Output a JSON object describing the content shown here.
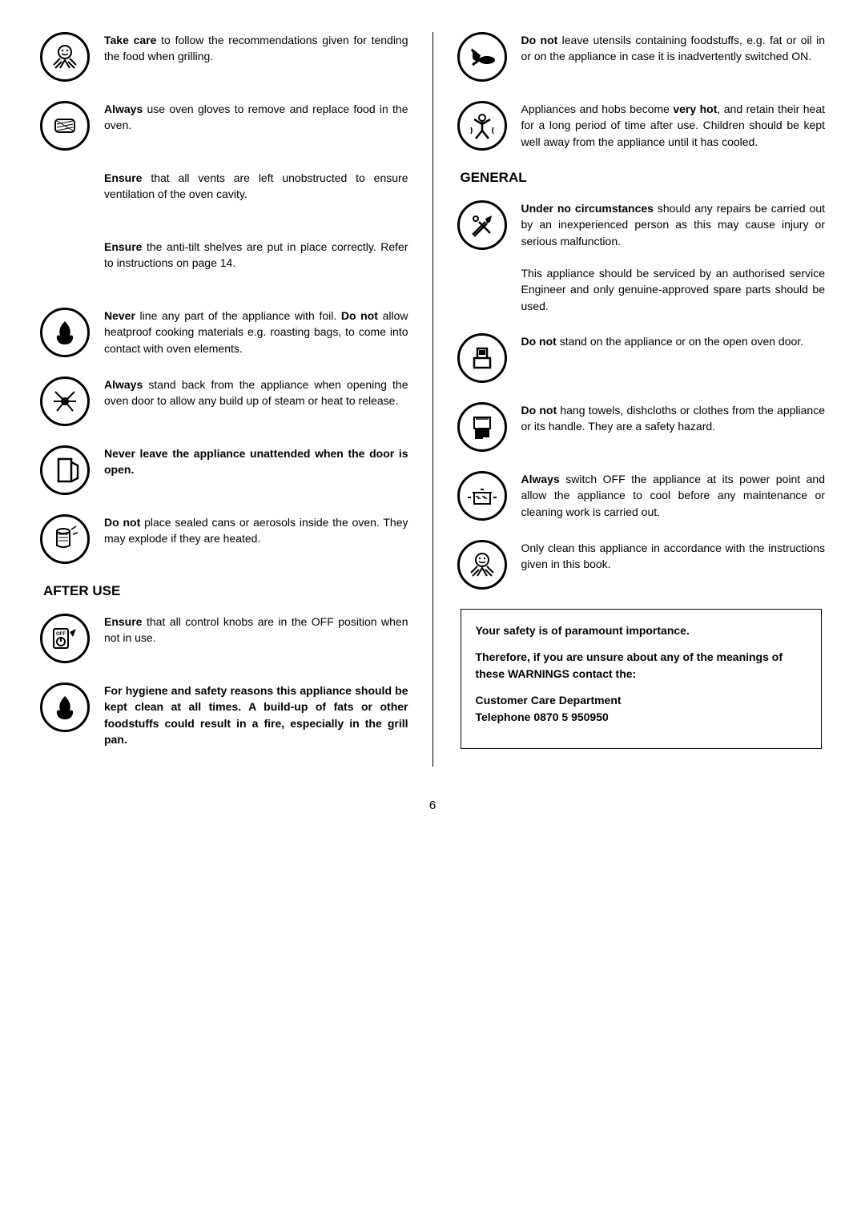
{
  "left": [
    {
      "id": "take-care",
      "icon": "smile-hand",
      "html": "<b>Take care</b> to follow the recommendations given for tending the food when grilling."
    },
    {
      "id": "always-gloves",
      "icon": "glove",
      "html": "<b>Always</b> use oven gloves to remove and replace food in the oven."
    },
    {
      "id": "ensure-vents",
      "icon": "",
      "html": "<b>Ensure</b> that all vents are left unobstructed to ensure ventilation of the oven cavity."
    },
    {
      "id": "ensure-tilt",
      "icon": "",
      "html": "<b>Ensure</b> the anti-tilt shelves are put in place correctly. Refer to instructions on page 14."
    },
    {
      "id": "never-line",
      "icon": "flame",
      "html": "<b>Never</b> line any part of the appliance with foil. <b>Do not</b> allow heatproof cooking materials e.g. roasting bags, to come into contact with oven elements."
    },
    {
      "id": "always-stand",
      "icon": "radiate",
      "html": "<b>Always</b> stand back from the appliance when opening the oven door to allow any build up of steam or heat to release."
    },
    {
      "id": "never-leave",
      "icon": "door",
      "html": "<b>Never leave the appliance unattended when the door is open.</b>"
    },
    {
      "id": "do-not-sealed",
      "icon": "can",
      "html": "<b>Do not</b> place sealed cans or aerosols inside the oven. They may explode if they are heated."
    }
  ],
  "afterUseTitle": "AFTER USE",
  "afterUse": [
    {
      "id": "ensure-knobs",
      "icon": "off-knob",
      "html": "<b>Ensure</b> that all control knobs are in the OFF position when not in use."
    },
    {
      "id": "hygiene",
      "icon": "flame",
      "html": "<b>For hygiene and safety reasons this appliance should be kept clean at all times. A build-up of fats or other foodstuffs could result in a fire, especially in the grill pan.</b>"
    }
  ],
  "rightTop": [
    {
      "id": "do-not-leave-utensils",
      "icon": "hand-pan",
      "html": "<b>Do not</b> leave utensils containing foodstuffs, e.g. fat or oil in or on the appliance in case it is inadvertently switched ON."
    },
    {
      "id": "very-hot",
      "icon": "person-hot",
      "html": "Appliances and hobs become <b>very hot</b>, and retain their heat for a long period of time after use. Children should be kept well away from the appliance until it has cooled."
    }
  ],
  "generalTitle": "GENERAL",
  "general": [
    {
      "id": "under-no-circ",
      "icon": "tools",
      "html": "<b>Under no circumstances</b> should any repairs be carried out by an inexperienced person as this may cause injury or serious malfunction.<br><br>This appliance should be serviced by an authorised service Engineer and only genuine-approved spare parts should be used."
    },
    {
      "id": "do-not-stand",
      "icon": "stand",
      "html": "<b>Do not</b> stand on the appliance or on the open oven door."
    },
    {
      "id": "do-not-hang",
      "icon": "towel",
      "html": "<b>Do not</b> hang towels, dishcloths or clothes from the appliance or its handle. They are a safety hazard."
    },
    {
      "id": "always-switch-off",
      "icon": "pot",
      "html": "<b>Always</b> switch OFF the appliance at its power point and allow the appliance to cool before any maintenance or cleaning work is carried out."
    },
    {
      "id": "only-clean",
      "icon": "smile-hand",
      "html": "Only clean this appliance in accordance with the instructions given in this book."
    }
  ],
  "box": {
    "l1": "Your safety is of paramount importance.",
    "l2": "Therefore, if you are unsure about any of the meanings of these WARNINGS contact the:",
    "l3": "Customer Care Department",
    "l4": "Telephone 0870 5 950950"
  },
  "pageNum": "6"
}
